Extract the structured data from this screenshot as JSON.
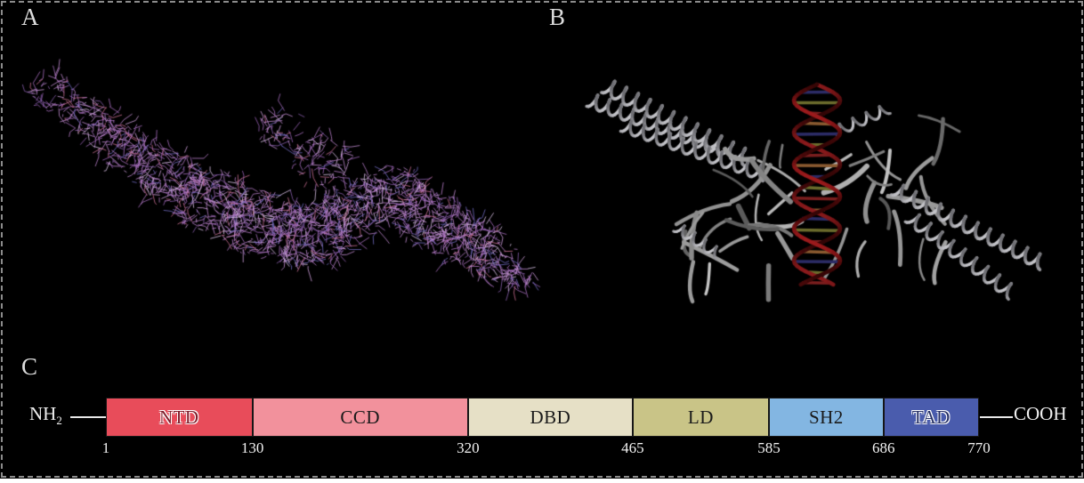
{
  "panels": [
    {
      "label": "A"
    },
    {
      "label": "B"
    },
    {
      "label": "C"
    }
  ],
  "panel_a": {
    "content": "protein stick model rendering",
    "stick_palette": [
      "#b77ec9",
      "#c18bd2",
      "#a86fc0",
      "#9a63b8",
      "#cf9fdd",
      "#b77ec9",
      "#a86fc0",
      "#c18bd2",
      "#8a5fae",
      "#7069c0",
      "#c96f92",
      "#dcc3e8"
    ]
  },
  "panel_b": {
    "content": "protein ribbon dimer bound to DNA rendering",
    "ribbon_gray_light": "#d0d0d0",
    "ribbon_gray_dark": "#5c5c5c",
    "dna_strand_color": "#7a1e1e",
    "dna_rung_colors": [
      "#2c2c66",
      "#6b6b2c",
      "#7a1e1e",
      "#8a5a30"
    ]
  },
  "domain_diagram": {
    "n_terminus_main": "NH",
    "n_terminus_sub": "2",
    "c_terminus_label": "COOH",
    "residue_start": 1,
    "residue_end": 770,
    "domains": [
      {
        "name": "NTD",
        "start": 1,
        "end": 130,
        "color": "#e84c5a",
        "label_color": "#7e1c29",
        "label_outlined": true
      },
      {
        "name": "CCD",
        "start": 130,
        "end": 320,
        "color": "#f2919c",
        "label_color": "#1a1a1a",
        "label_outlined": false
      },
      {
        "name": "DBD",
        "start": 320,
        "end": 465,
        "color": "#e6e0c6",
        "label_color": "#1a1a1a",
        "label_outlined": false
      },
      {
        "name": "LD",
        "start": 465,
        "end": 585,
        "color": "#c9c487",
        "label_color": "#1a1a1a",
        "label_outlined": false
      },
      {
        "name": "SH2",
        "start": 585,
        "end": 686,
        "color": "#83b6e2",
        "label_color": "#1a1a1a",
        "label_outlined": false
      },
      {
        "name": "TAD",
        "start": 686,
        "end": 770,
        "color": "#4a5cad",
        "label_color": "#273166",
        "label_outlined": true
      }
    ],
    "ticks": [
      1,
      130,
      320,
      465,
      585,
      686,
      770
    ]
  }
}
